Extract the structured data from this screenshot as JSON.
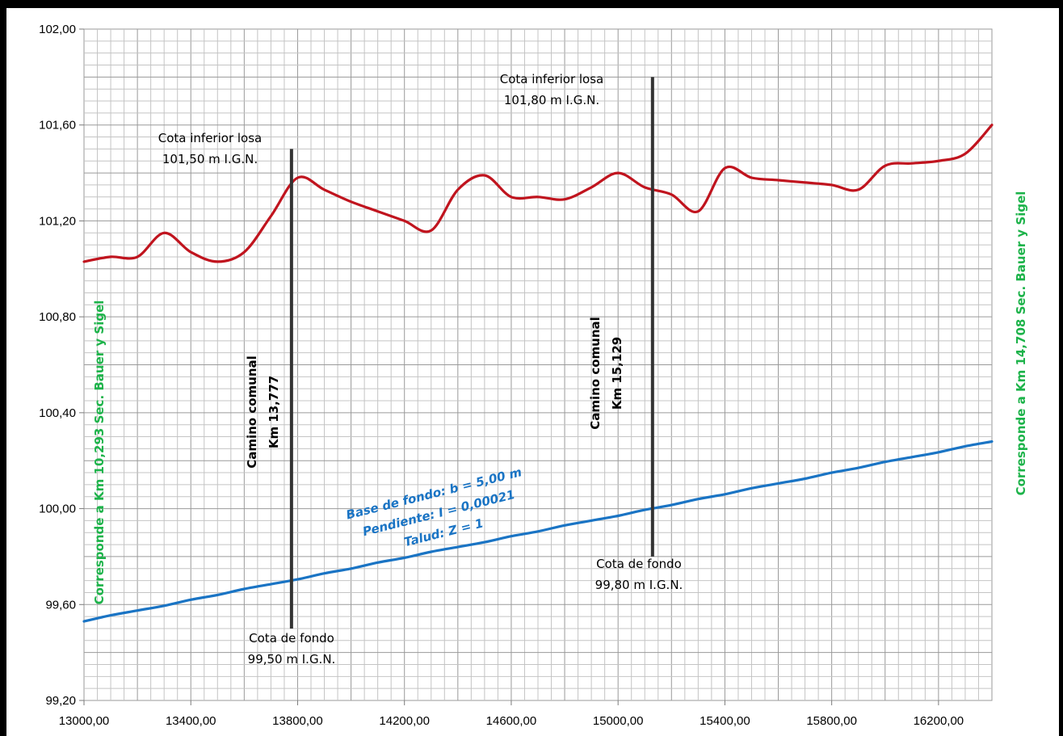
{
  "chart_data": {
    "type": "line",
    "xlim": [
      13000,
      16400
    ],
    "ylim": [
      99.2,
      102.0
    ],
    "grid": true,
    "x_ticks": [
      "13000,00",
      "13400,00",
      "13800,00",
      "14200,00",
      "14600,00",
      "15000,00",
      "15400,00",
      "15800,00",
      "16200,00"
    ],
    "y_ticks": [
      "99,20",
      "99,60",
      "100,00",
      "100,40",
      "100,80",
      "101,20",
      "101,60",
      "102,00"
    ],
    "x_tick_values": [
      13000,
      13400,
      13800,
      14200,
      14600,
      15000,
      15400,
      15800,
      16200
    ],
    "y_tick_values": [
      99.2,
      99.6,
      100.0,
      100.4,
      100.8,
      101.2,
      101.6,
      102.0
    ],
    "series": [
      {
        "color": "#c0141e",
        "x": [
          13000,
          13100,
          13200,
          13300,
          13400,
          13500,
          13600,
          13700,
          13800,
          13900,
          14000,
          14100,
          14200,
          14300,
          14400,
          14500,
          14600,
          14700,
          14800,
          14900,
          15000,
          15100,
          15200,
          15300,
          15400,
          15500,
          15600,
          15700,
          15800,
          15900,
          16000,
          16100,
          16200,
          16300,
          16400
        ],
        "y": [
          101.03,
          101.05,
          101.05,
          101.15,
          101.07,
          101.03,
          101.07,
          101.22,
          101.38,
          101.33,
          101.28,
          101.24,
          101.2,
          101.16,
          101.33,
          101.39,
          101.3,
          101.3,
          101.29,
          101.34,
          101.4,
          101.34,
          101.31,
          101.24,
          101.42,
          101.38,
          101.37,
          101.36,
          101.35,
          101.33,
          101.43,
          101.44,
          101.45,
          101.48,
          101.6
        ]
      },
      {
        "color": "#1a74c4",
        "x": [
          13000,
          13100,
          13200,
          13300,
          13400,
          13500,
          13600,
          13700,
          13800,
          13900,
          14000,
          14100,
          14200,
          14300,
          14400,
          14500,
          14600,
          14700,
          14800,
          14900,
          15000,
          15100,
          15200,
          15300,
          15400,
          15500,
          15600,
          15700,
          15800,
          15900,
          16000,
          16100,
          16200,
          16300,
          16400
        ],
        "y": [
          99.53,
          99.555,
          99.575,
          99.595,
          99.62,
          99.64,
          99.665,
          99.685,
          99.705,
          99.73,
          99.75,
          99.775,
          99.795,
          99.82,
          99.84,
          99.86,
          99.885,
          99.905,
          99.93,
          99.95,
          99.97,
          99.995,
          100.015,
          100.04,
          100.06,
          100.085,
          100.105,
          100.125,
          100.15,
          100.17,
          100.195,
          100.215,
          100.235,
          100.26,
          100.28
        ]
      }
    ],
    "markers": [
      {
        "x": 13777,
        "y_from": 99.5,
        "y_to": 101.5,
        "color": "#333333"
      },
      {
        "x": 15129,
        "y_from": 99.8,
        "y_to": 101.8,
        "color": "#333333"
      }
    ],
    "annotations": {
      "top_left_line1": "Cota  inferior losa",
      "top_left_line2": "101,50 m I.G.N.",
      "top_right_line1": "Cota  inferior losa",
      "top_right_line2": "101,80 m I.G.N.",
      "bottom_left_line1": "Cota  de fondo",
      "bottom_left_line2": "99,50 m I.G.N.",
      "bottom_right_line1": "Cota  de fondo",
      "bottom_right_line2": "99,80 m I.G.N.",
      "camino1_line1": "Camino comunal",
      "camino1_line2": "Km 13,777",
      "camino2_line1": "Camino comunal",
      "camino2_line2": "Km 15,129",
      "spec_line1": "Base de fondo:  b = 5,00 m",
      "spec_line2": "Pendiente:  I = 0,00021",
      "spec_line3": "Talud:   Z = 1",
      "side_left": "Corresponde a Km 10,293  Sec. Bauer y Sigel",
      "side_right": "Corresponde a Km 14,708 Sec. Bauer y Sigel"
    }
  }
}
